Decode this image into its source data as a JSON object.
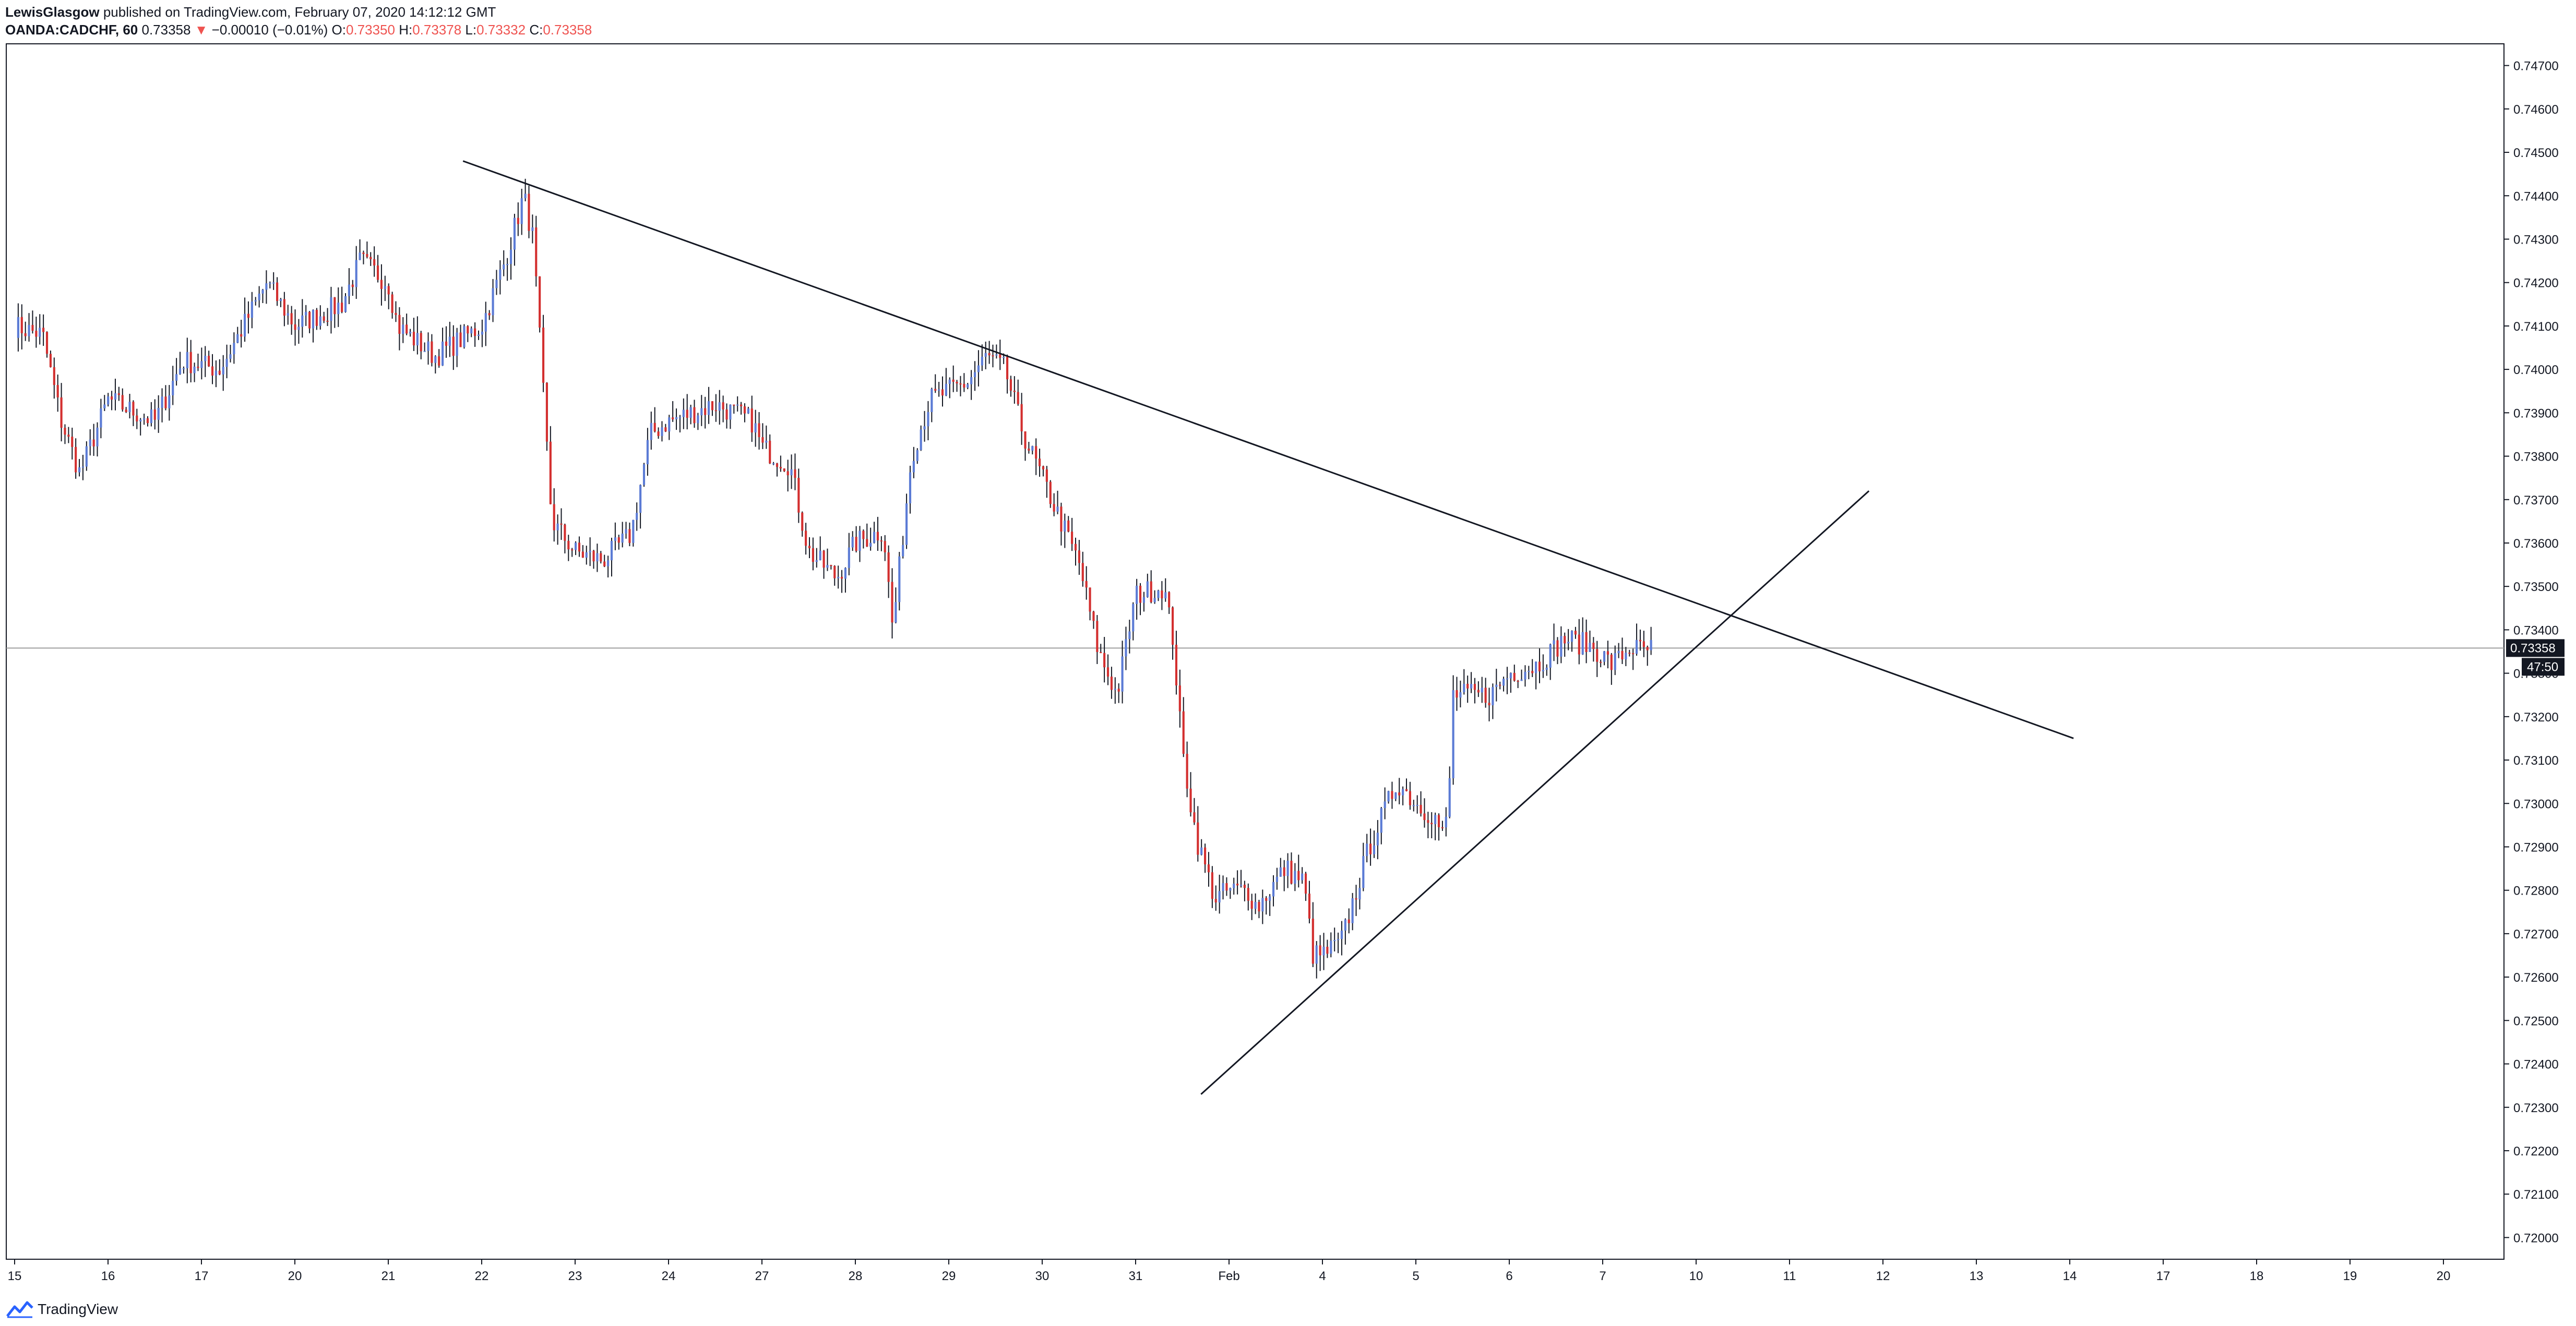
{
  "header": {
    "author": "LewisGlasgow",
    "published": "published on TradingView.com, February 07, 2020 14:12:12 GMT",
    "symbol": "OANDA:CADCHF, 60",
    "last": "0.73358",
    "change_arrow": "▼",
    "change": "−0.00010 (−0.01%)",
    "o_label": "O:",
    "o_value": "0.73350",
    "h_label": "H:",
    "h_value": "0.73378",
    "l_label": "L:",
    "l_value": "0.73332",
    "c_label": "C:",
    "c_value": "0.73358"
  },
  "footer": {
    "brand": "TradingView",
    "logo_icon": "tradingview-logo-icon"
  },
  "colors": {
    "up": "#5b7bd5",
    "down": "#d32f2f",
    "wick": "#131722",
    "line": "#131722",
    "badge": "#131722"
  },
  "chart_data": {
    "type": "candlestick",
    "symbol": "CADCHF",
    "interval": "60",
    "ylim": [
      0.7195,
      0.7475
    ],
    "y_ticks": [
      "0.74700",
      "0.74600",
      "0.74500",
      "0.74400",
      "0.74300",
      "0.74200",
      "0.74100",
      "0.74000",
      "0.73900",
      "0.73800",
      "0.73700",
      "0.73600",
      "0.73500",
      "0.73400",
      "0.73300",
      "0.73200",
      "0.73100",
      "0.73000",
      "0.72900",
      "0.72800",
      "0.72700",
      "0.72600",
      "0.72500",
      "0.72400",
      "0.72300",
      "0.72200",
      "0.72100",
      "0.72000"
    ],
    "x_ticks": [
      "15",
      "16",
      "17",
      "20",
      "21",
      "22",
      "23",
      "24",
      "27",
      "28",
      "29",
      "30",
      "31",
      "Feb",
      "4",
      "5",
      "6",
      "7",
      "10",
      "11",
      "12",
      "13",
      "14",
      "17",
      "18",
      "19",
      "20"
    ],
    "x_tick_index": [
      0,
      1,
      2,
      3,
      4,
      5,
      6,
      7,
      8,
      9,
      10,
      11,
      12,
      13,
      14,
      15,
      16,
      17,
      18,
      19,
      20,
      21,
      22,
      23,
      24,
      25,
      26
    ],
    "price_line": 0.73358,
    "price_label": "0.73358",
    "countdown": "47:50",
    "trendlines": [
      {
        "name": "descending-resistance",
        "from": [
          4.8,
          0.7448
        ],
        "to": [
          22.04,
          0.7315
        ]
      },
      {
        "name": "ascending-support",
        "from": [
          12.7,
          0.7233
        ],
        "to": [
          19.85,
          0.7372
        ]
      }
    ],
    "anchors": [
      [
        0.0,
        0.741
      ],
      [
        0.3,
        0.7408
      ],
      [
        0.5,
        0.7388
      ],
      [
        0.7,
        0.7376
      ],
      [
        1.0,
        0.7393
      ],
      [
        1.5,
        0.7388
      ],
      [
        1.8,
        0.7402
      ],
      [
        2.2,
        0.74
      ],
      [
        2.5,
        0.7412
      ],
      [
        2.7,
        0.742
      ],
      [
        3.0,
        0.741
      ],
      [
        3.5,
        0.7415
      ],
      [
        3.7,
        0.7425
      ],
      [
        4.0,
        0.742
      ],
      [
        4.1,
        0.741
      ],
      [
        4.5,
        0.7403
      ],
      [
        5.0,
        0.741
      ],
      [
        5.25,
        0.7425
      ],
      [
        5.45,
        0.744
      ],
      [
        5.55,
        0.743
      ],
      [
        5.75,
        0.7365
      ],
      [
        6.0,
        0.7358
      ],
      [
        6.3,
        0.7356
      ],
      [
        6.6,
        0.7362
      ],
      [
        6.8,
        0.7385
      ],
      [
        7.0,
        0.7388
      ],
      [
        7.5,
        0.7392
      ],
      [
        7.9,
        0.7388
      ],
      [
        8.0,
        0.7382
      ],
      [
        8.3,
        0.7378
      ],
      [
        8.5,
        0.7358
      ],
      [
        8.8,
        0.7352
      ],
      [
        9.0,
        0.736
      ],
      [
        9.3,
        0.7363
      ],
      [
        9.4,
        0.734
      ],
      [
        9.6,
        0.738
      ],
      [
        9.8,
        0.7393
      ],
      [
        10.2,
        0.7397
      ],
      [
        10.4,
        0.7403
      ],
      [
        10.6,
        0.74
      ],
      [
        10.8,
        0.7385
      ],
      [
        11.0,
        0.7375
      ],
      [
        11.2,
        0.7365
      ],
      [
        11.4,
        0.7355
      ],
      [
        11.6,
        0.7335
      ],
      [
        11.8,
        0.7325
      ],
      [
        12.0,
        0.7348
      ],
      [
        12.3,
        0.735
      ],
      [
        12.4,
        0.7338
      ],
      [
        12.5,
        0.7312
      ],
      [
        12.65,
        0.7292
      ],
      [
        12.85,
        0.7278
      ],
      [
        13.0,
        0.728
      ],
      [
        13.2,
        0.728
      ],
      [
        13.3,
        0.7276
      ],
      [
        13.6,
        0.7285
      ],
      [
        13.8,
        0.7282
      ],
      [
        13.9,
        0.7265
      ],
      [
        14.0,
        0.7265
      ],
      [
        14.2,
        0.7268
      ],
      [
        14.5,
        0.729
      ],
      [
        14.8,
        0.7305
      ],
      [
        15.0,
        0.73
      ],
      [
        15.2,
        0.7297
      ],
      [
        15.3,
        0.7292
      ],
      [
        15.35,
        0.73
      ],
      [
        15.4,
        0.7325
      ],
      [
        15.6,
        0.7325
      ],
      [
        15.8,
        0.7325
      ],
      [
        16.0,
        0.733
      ],
      [
        16.3,
        0.7332
      ],
      [
        16.6,
        0.7338
      ],
      [
        16.9,
        0.7336
      ],
      [
        17.1,
        0.7332
      ],
      [
        17.3,
        0.7336
      ],
      [
        17.45,
        0.7335
      ],
      [
        17.55,
        0.7336
      ]
    ],
    "step": 0.0385,
    "seed": 7,
    "volatility": 0.00055
  }
}
